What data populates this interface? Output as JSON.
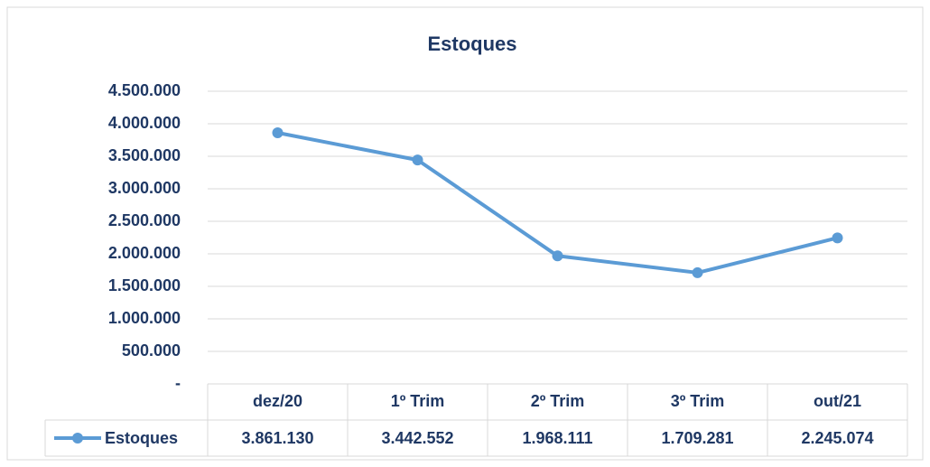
{
  "chart_data": {
    "type": "line",
    "title": "Estoques",
    "categories": [
      "dez/20",
      "1º Trim",
      "2º Trim",
      "3º Trim",
      "out/21"
    ],
    "series": [
      {
        "name": "Estoques",
        "color": "#5b9bd5",
        "values": [
          3861130,
          3442552,
          1968111,
          1709281,
          2245074
        ],
        "value_labels": [
          "3.861.130",
          "3.442.552",
          "1.968.111",
          "1.709.281",
          "2.245.074"
        ]
      }
    ],
    "ylim": [
      0,
      4500000
    ],
    "yticks": [
      {
        "value": 0,
        "label": "-"
      },
      {
        "value": 500000,
        "label": "500.000"
      },
      {
        "value": 1000000,
        "label": "1.000.000"
      },
      {
        "value": 1500000,
        "label": "1.500.000"
      },
      {
        "value": 2000000,
        "label": "2.000.000"
      },
      {
        "value": 2500000,
        "label": "2.500.000"
      },
      {
        "value": 3000000,
        "label": "3.000.000"
      },
      {
        "value": 3500000,
        "label": "3.500.000"
      },
      {
        "value": 4000000,
        "label": "4.000.000"
      },
      {
        "value": 4500000,
        "label": "4.500.000"
      }
    ],
    "grid": true
  }
}
